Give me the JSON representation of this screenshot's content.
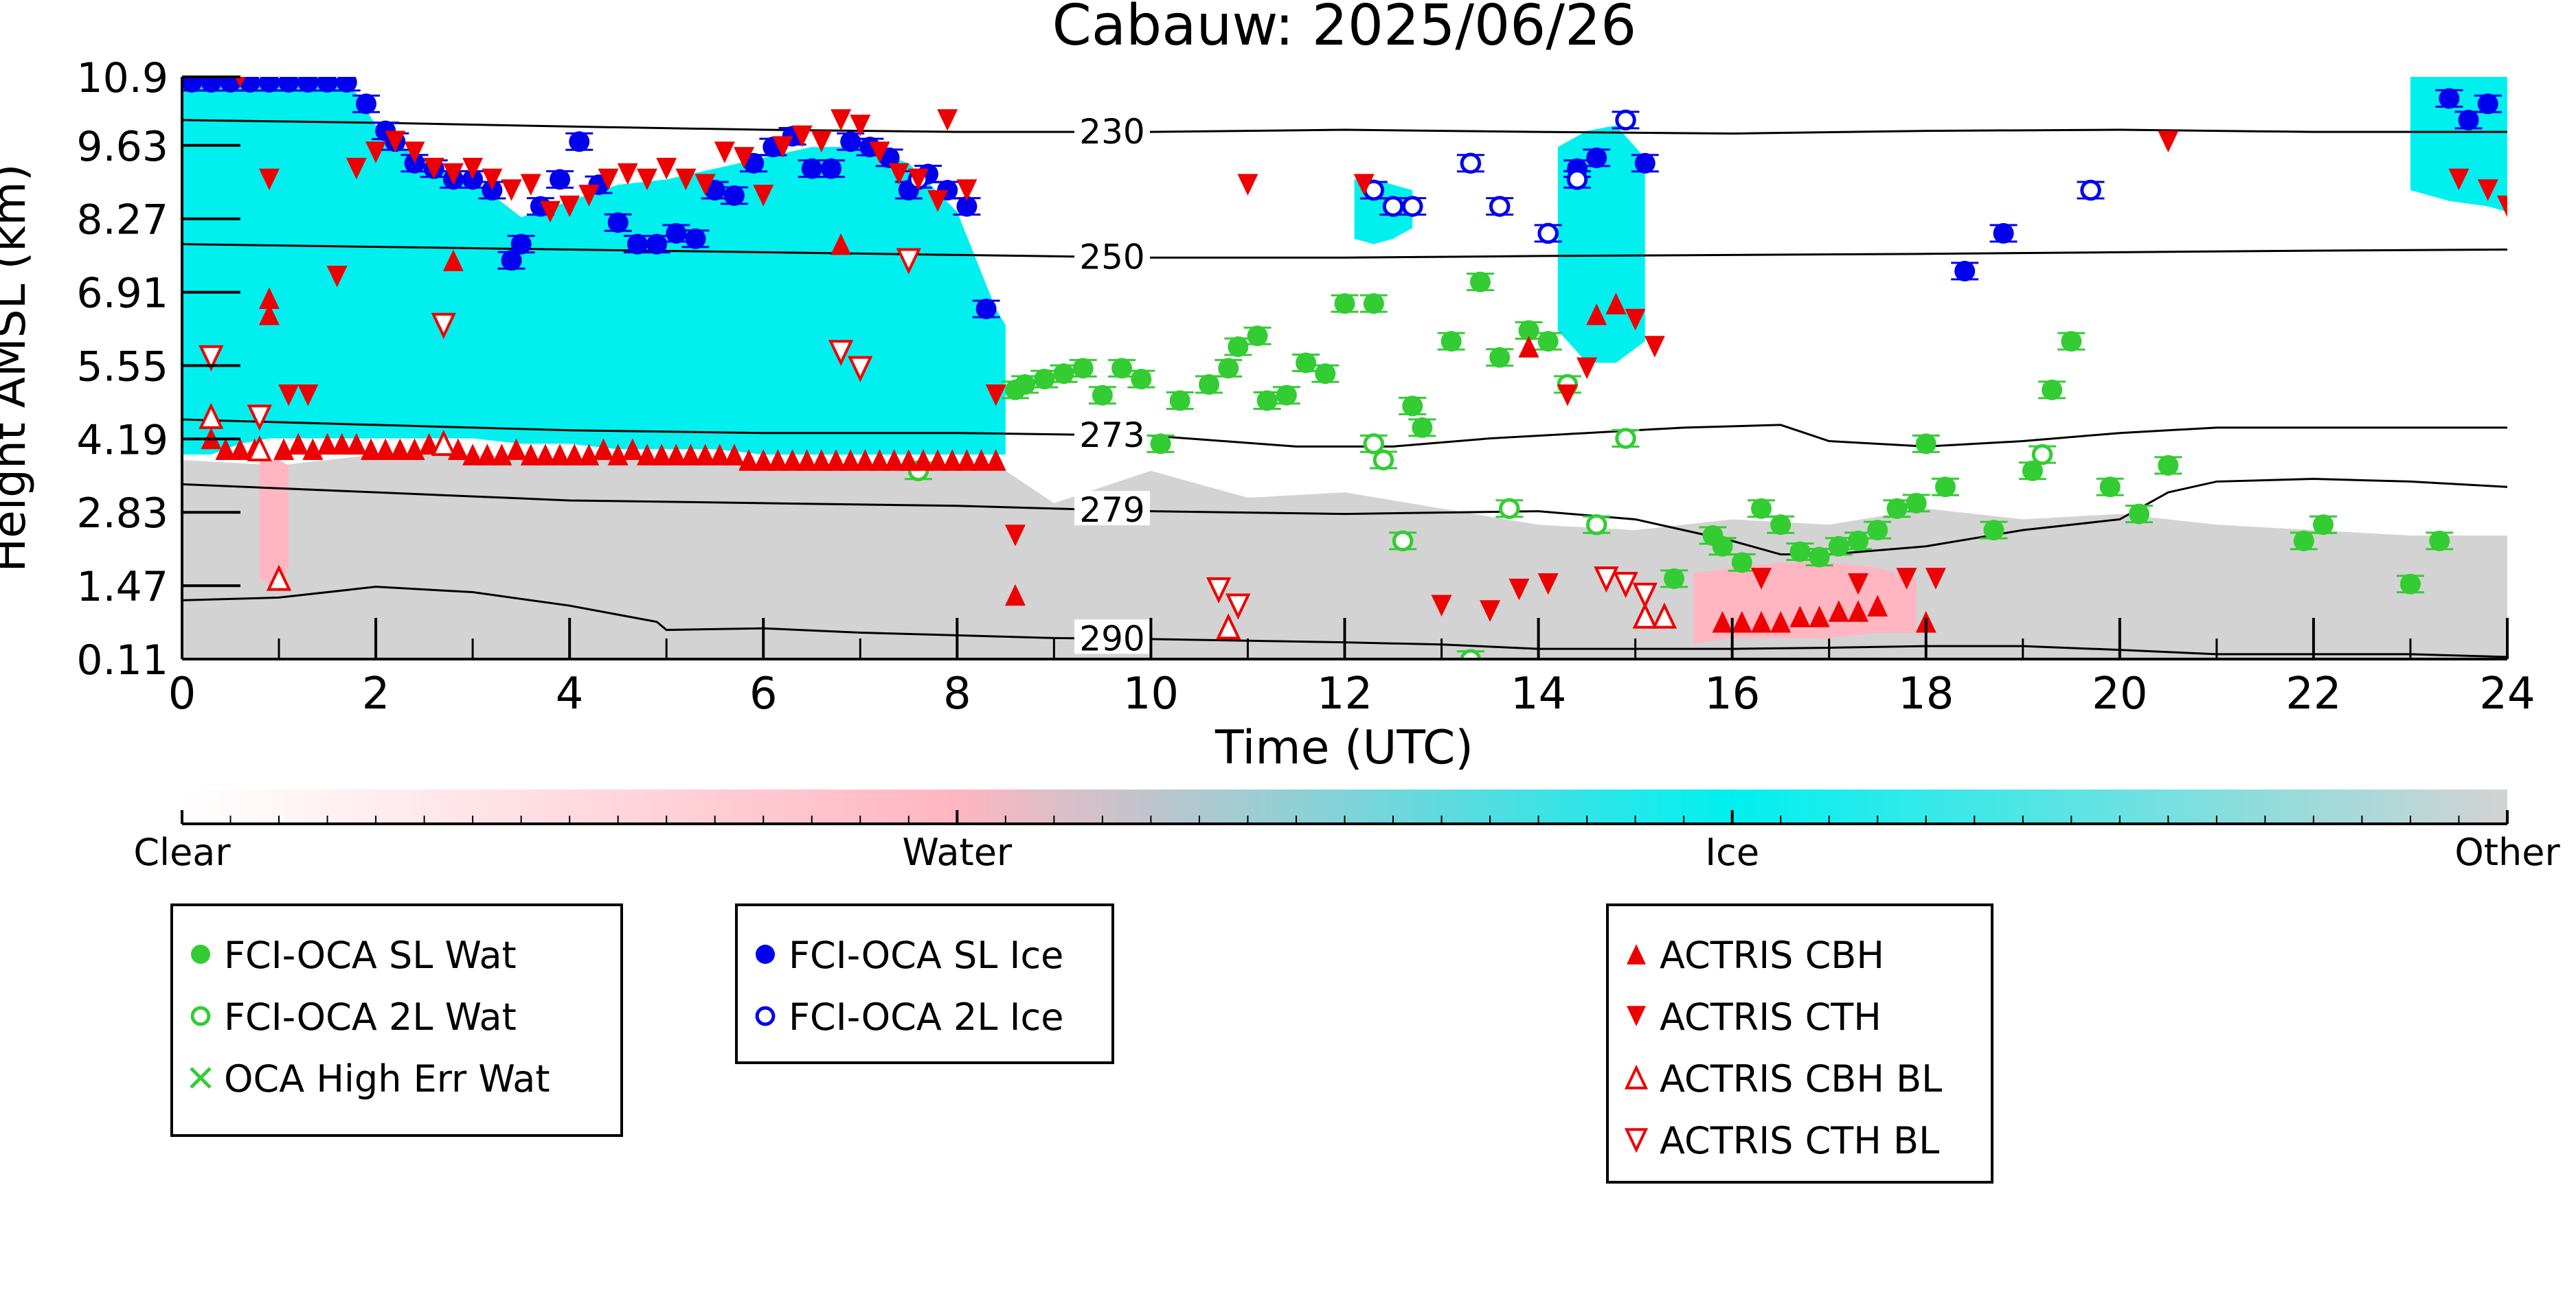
{
  "chart_data": {
    "type": "scatter",
    "title": "Cabauw: 2025/06/26",
    "xlabel": "Time (UTC)",
    "ylabel": "Height AMSL (km)",
    "xlim": [
      0,
      24
    ],
    "ylim": [
      0.11,
      10.9
    ],
    "xticks": [
      0,
      2,
      4,
      6,
      8,
      10,
      12,
      14,
      16,
      18,
      20,
      22,
      24
    ],
    "yticks": [
      "0.11",
      "1.47",
      "2.83",
      "4.19",
      "5.55",
      "6.91",
      "8.27",
      "9.63",
      "10.9"
    ],
    "colorbar": {
      "labels": [
        "Clear",
        "Water",
        "Ice",
        "Other"
      ],
      "colors": [
        "#ffffff",
        "#ffb6c1",
        "#00f0f0",
        "#d3d3d3"
      ]
    },
    "background_regions": [
      {
        "class": "Ice",
        "color": "#00f0f0",
        "x": [
          0.0,
          0.3,
          0.6,
          0.9,
          1.2,
          1.5,
          1.8,
          2.0,
          2.5,
          3.0,
          3.5,
          4.0,
          4.5,
          5.0,
          5.5,
          6.0,
          6.5,
          7.0,
          7.5,
          8.0,
          8.4,
          8.5
        ],
        "top": [
          10.9,
          10.9,
          10.8,
          10.8,
          10.9,
          10.9,
          10.6,
          10.0,
          9.3,
          9.0,
          8.3,
          8.6,
          8.9,
          9.0,
          9.2,
          9.4,
          9.6,
          9.6,
          9.3,
          8.4,
          6.6,
          6.3
        ],
        "bottom": [
          3.9,
          3.9,
          4.1,
          4.2,
          4.2,
          4.2,
          4.2,
          4.2,
          4.2,
          4.2,
          4.1,
          4.1,
          4.0,
          4.0,
          4.0,
          3.9,
          3.9,
          3.9,
          3.9,
          3.9,
          3.9,
          3.9
        ]
      },
      {
        "class": "Ice",
        "color": "#00f0f0",
        "x": [
          12.1,
          12.3,
          12.5,
          12.7
        ],
        "top": [
          9.0,
          9.0,
          8.9,
          8.8
        ],
        "bottom": [
          7.9,
          7.8,
          7.9,
          8.1
        ]
      },
      {
        "class": "Ice",
        "color": "#00f0f0",
        "x": [
          14.2,
          14.5,
          14.8,
          15.1
        ],
        "top": [
          9.6,
          9.9,
          10.0,
          9.4
        ],
        "bottom": [
          6.2,
          5.6,
          5.6,
          6.0
        ]
      },
      {
        "class": "Ice",
        "color": "#00f0f0",
        "x": [
          23.0,
          23.4,
          23.8,
          24.0
        ],
        "top": [
          10.9,
          10.9,
          10.9,
          10.9
        ],
        "bottom": [
          8.8,
          8.6,
          8.5,
          8.4
        ]
      },
      {
        "class": "Other",
        "color": "#d3d3d3",
        "x": [
          0.0,
          1.0,
          2.0,
          3.0,
          4.0,
          5.0,
          6.0,
          7.0,
          8.0,
          8.5,
          9.0,
          10.0,
          11.0,
          12.0,
          13.0,
          14.0,
          15.0,
          16.0,
          17.0,
          18.0,
          19.0,
          20.0,
          21.0,
          22.0,
          23.0,
          24.0
        ],
        "top": [
          3.8,
          3.7,
          3.9,
          3.9,
          3.8,
          3.8,
          3.7,
          3.6,
          3.6,
          3.6,
          3.0,
          3.6,
          3.1,
          3.2,
          2.9,
          2.6,
          2.5,
          2.7,
          2.6,
          2.9,
          2.7,
          2.8,
          2.6,
          2.5,
          2.4,
          2.4
        ],
        "bottom": [
          0.11,
          0.11,
          0.11,
          0.11,
          0.11,
          0.11,
          0.11,
          0.11,
          0.11,
          0.11,
          0.11,
          0.11,
          0.11,
          0.11,
          0.11,
          0.11,
          0.11,
          0.11,
          0.11,
          0.11,
          0.11,
          0.11,
          0.11,
          0.11,
          0.11,
          0.11
        ]
      },
      {
        "class": "Water",
        "color": "#ffb6c1",
        "x": [
          0.8,
          1.0,
          1.1
        ],
        "top": [
          3.8,
          3.8,
          3.7
        ],
        "bottom": [
          1.6,
          1.4,
          1.8
        ]
      },
      {
        "class": "Water",
        "color": "#ffb6c1",
        "x": [
          15.6,
          16.0,
          16.5,
          17.0,
          17.5,
          17.9
        ],
        "top": [
          1.7,
          1.8,
          1.9,
          1.9,
          1.8,
          1.6
        ],
        "bottom": [
          0.4,
          0.5,
          0.5,
          0.5,
          0.6,
          0.6
        ]
      }
    ],
    "isotherms": [
      {
        "label": "230",
        "label_x": 9.6,
        "x": [
          0.0,
          2.0,
          4.0,
          6.0,
          8.0,
          10.0,
          12.0,
          14.0,
          16.0,
          18.0,
          20.0,
          22.0,
          24.0
        ],
        "y": [
          10.1,
          10.05,
          9.98,
          9.92,
          9.88,
          9.88,
          9.92,
          9.88,
          9.85,
          9.9,
          9.92,
          9.88,
          9.88
        ]
      },
      {
        "label": "250",
        "label_x": 9.6,
        "x": [
          0.0,
          2.0,
          4.0,
          6.0,
          8.0,
          10.0,
          12.0,
          14.0,
          16.0,
          18.0,
          20.0,
          22.0,
          24.0
        ],
        "y": [
          7.8,
          7.75,
          7.7,
          7.65,
          7.6,
          7.55,
          7.55,
          7.58,
          7.6,
          7.62,
          7.65,
          7.68,
          7.7
        ]
      },
      {
        "label": "273",
        "label_x": 9.6,
        "x": [
          0.0,
          2.0,
          4.0,
          6.0,
          8.0,
          10.0,
          11.5,
          12.5,
          13.5,
          14.5,
          15.5,
          16.5,
          17.0,
          18.0,
          19.0,
          20.0,
          21.0,
          22.0,
          23.0,
          24.0
        ],
        "y": [
          4.55,
          4.45,
          4.35,
          4.3,
          4.3,
          4.25,
          4.05,
          4.05,
          4.2,
          4.3,
          4.4,
          4.45,
          4.15,
          4.05,
          4.15,
          4.3,
          4.4,
          4.4,
          4.4,
          4.4
        ]
      },
      {
        "label": "279",
        "label_x": 9.6,
        "x": [
          0.0,
          2.0,
          4.0,
          6.0,
          8.0,
          10.0,
          12.0,
          14.0,
          15.0,
          16.0,
          16.5,
          17.0,
          18.0,
          19.0,
          20.0,
          20.5,
          21.0,
          22.0,
          23.0,
          24.0
        ],
        "y": [
          3.35,
          3.2,
          3.05,
          3.0,
          2.95,
          2.85,
          2.8,
          2.85,
          2.7,
          2.3,
          2.05,
          2.05,
          2.2,
          2.5,
          2.7,
          3.2,
          3.4,
          3.45,
          3.4,
          3.3
        ]
      },
      {
        "label": "290",
        "label_x": 9.6,
        "x": [
          0.0,
          1.0,
          2.0,
          3.0,
          4.0,
          4.9,
          5.0,
          6.0,
          7.0,
          8.0,
          9.0,
          10.0,
          11.0,
          12.0,
          13.0,
          14.0,
          15.0,
          16.0,
          17.0,
          18.0,
          19.0,
          20.0,
          21.0,
          22.0,
          23.0,
          24.0
        ],
        "y": [
          1.2,
          1.25,
          1.45,
          1.35,
          1.1,
          0.8,
          0.65,
          0.68,
          0.6,
          0.55,
          0.5,
          0.48,
          0.45,
          0.42,
          0.38,
          0.3,
          0.3,
          0.3,
          0.32,
          0.35,
          0.35,
          0.28,
          0.2,
          0.2,
          0.2,
          0.15
        ]
      }
    ],
    "series": [
      {
        "name": "FCI-OCA SL Wat",
        "marker": "circle-filled",
        "color": "#33cc33",
        "x": [
          8.6,
          8.7,
          8.9,
          9.1,
          9.3,
          9.5,
          9.7,
          9.9,
          10.1,
          10.3,
          10.6,
          10.8,
          10.9,
          11.1,
          11.2,
          11.4,
          11.6,
          11.8,
          12.0,
          12.3,
          12.7,
          12.8,
          13.1,
          13.4,
          13.6,
          13.9,
          14.1,
          15.4,
          15.8,
          15.9,
          16.1,
          16.3,
          16.5,
          16.7,
          16.9,
          17.1,
          17.3,
          17.5,
          17.7,
          17.9,
          18.0,
          18.2,
          18.7,
          19.1,
          19.3,
          19.5,
          19.9,
          20.2,
          20.5,
          21.9,
          22.1,
          23.0,
          23.3
        ],
        "y": [
          5.1,
          5.2,
          5.3,
          5.4,
          5.5,
          5.0,
          5.5,
          5.3,
          4.1,
          4.9,
          5.2,
          5.5,
          5.9,
          6.1,
          4.9,
          5.0,
          5.6,
          5.4,
          6.7,
          6.7,
          4.8,
          4.4,
          6.0,
          7.1,
          5.7,
          6.2,
          6.0,
          1.6,
          2.4,
          2.2,
          1.9,
          2.9,
          2.6,
          2.1,
          2.0,
          2.2,
          2.3,
          2.5,
          2.9,
          3.0,
          4.1,
          3.3,
          2.5,
          3.6,
          5.1,
          6.0,
          3.3,
          2.8,
          3.7,
          2.3,
          2.6,
          1.5,
          2.3
        ]
      },
      {
        "name": "FCI-OCA 2L Wat",
        "marker": "circle-open",
        "color": "#33cc33",
        "x": [
          7.6,
          12.3,
          12.4,
          12.6,
          13.3,
          13.7,
          14.3,
          14.6,
          14.9,
          19.2
        ],
        "y": [
          3.6,
          4.1,
          3.8,
          2.3,
          0.1,
          2.9,
          5.2,
          2.6,
          4.2,
          3.9
        ]
      },
      {
        "name": "OCA High Err Wat",
        "marker": "x",
        "color": "#33cc33",
        "x": [],
        "y": []
      },
      {
        "name": "FCI-OCA SL Ice",
        "marker": "circle-filled",
        "color": "#0000ee",
        "x": [
          0.1,
          0.3,
          0.5,
          0.7,
          0.9,
          1.1,
          1.3,
          1.5,
          1.7,
          1.9,
          2.1,
          2.2,
          2.4,
          2.6,
          2.8,
          3.0,
          3.2,
          3.4,
          3.5,
          3.7,
          3.9,
          4.1,
          4.3,
          4.5,
          4.7,
          4.9,
          5.1,
          5.3,
          5.5,
          5.7,
          5.9,
          6.1,
          6.3,
          6.5,
          6.7,
          6.9,
          7.1,
          7.3,
          7.5,
          7.7,
          7.9,
          8.1,
          8.3,
          14.4,
          14.6,
          15.1,
          18.4,
          18.8,
          23.4,
          23.6,
          23.8
        ],
        "y": [
          10.8,
          10.8,
          10.8,
          10.8,
          10.8,
          10.8,
          10.8,
          10.8,
          10.8,
          10.4,
          9.9,
          9.7,
          9.3,
          9.2,
          9.0,
          9.0,
          8.8,
          7.5,
          7.8,
          8.5,
          9.0,
          9.7,
          8.9,
          8.2,
          7.8,
          7.8,
          8.0,
          7.9,
          8.8,
          8.7,
          9.3,
          9.6,
          9.8,
          9.2,
          9.2,
          9.7,
          9.6,
          9.4,
          8.8,
          9.1,
          8.8,
          8.5,
          6.6,
          9.2,
          9.4,
          9.3,
          7.3,
          8.0,
          10.5,
          10.1,
          10.4
        ]
      },
      {
        "name": "FCI-OCA 2L Ice",
        "marker": "circle-open",
        "color": "#0000ee",
        "x": [
          7.6,
          12.3,
          12.5,
          12.7,
          13.3,
          13.6,
          14.1,
          14.4,
          14.9,
          19.7
        ],
        "y": [
          9.0,
          8.8,
          8.5,
          8.5,
          9.3,
          8.5,
          8.0,
          9.0,
          10.1,
          8.8
        ]
      },
      {
        "name": "ACTRIS CBH",
        "marker": "triangle-up-filled",
        "color": "#ee0000",
        "x": [
          0.3,
          0.45,
          0.6,
          0.75,
          0.9,
          1.05,
          1.2,
          1.35,
          1.5,
          1.65,
          1.8,
          1.95,
          2.1,
          2.25,
          2.4,
          2.55,
          2.7,
          2.85,
          3.0,
          3.15,
          3.3,
          3.45,
          3.6,
          3.75,
          3.9,
          4.05,
          4.2,
          4.35,
          4.5,
          4.65,
          4.8,
          4.95,
          5.1,
          5.25,
          5.4,
          5.55,
          5.7,
          5.85,
          6.0,
          6.15,
          6.3,
          6.45,
          6.6,
          6.75,
          6.9,
          7.05,
          7.2,
          7.35,
          7.5,
          7.65,
          7.8,
          7.95,
          8.1,
          8.25,
          8.4,
          0.9,
          1.0,
          2.8,
          6.8,
          8.6,
          13.9,
          14.6,
          14.8,
          15.9,
          16.1,
          16.3,
          16.5,
          16.7,
          16.9,
          17.1,
          17.3,
          17.5,
          18.0
        ],
        "y": [
          4.2,
          4.0,
          4.0,
          4.0,
          6.8,
          4.0,
          4.1,
          4.0,
          4.1,
          4.1,
          4.1,
          4.0,
          4.0,
          4.0,
          4.0,
          4.1,
          4.1,
          4.0,
          3.9,
          3.9,
          3.9,
          4.0,
          3.9,
          3.9,
          3.9,
          3.9,
          3.9,
          4.0,
          3.9,
          4.0,
          3.9,
          3.9,
          3.9,
          3.9,
          3.9,
          3.9,
          3.9,
          3.8,
          3.8,
          3.8,
          3.8,
          3.8,
          3.8,
          3.8,
          3.8,
          3.8,
          3.8,
          3.8,
          3.8,
          3.8,
          3.8,
          3.8,
          3.8,
          3.8,
          3.8,
          6.5,
          1.6,
          7.5,
          7.8,
          1.3,
          5.9,
          6.5,
          6.7,
          0.8,
          0.8,
          0.8,
          0.8,
          0.9,
          0.9,
          1.0,
          1.0,
          1.1,
          0.8
        ]
      },
      {
        "name": "ACTRIS CTH",
        "marker": "triangle-down-filled",
        "color": "#ee0000",
        "x": [
          0.6,
          0.9,
          1.1,
          1.3,
          1.6,
          1.8,
          2.0,
          2.2,
          2.4,
          2.6,
          2.8,
          3.0,
          3.2,
          3.4,
          3.6,
          3.8,
          4.0,
          4.2,
          4.4,
          4.6,
          4.8,
          5.0,
          5.2,
          5.4,
          5.6,
          5.8,
          6.0,
          6.2,
          6.4,
          6.6,
          6.8,
          7.0,
          7.2,
          7.4,
          7.6,
          7.8,
          7.9,
          8.1,
          8.4,
          8.6,
          11.0,
          12.2,
          13.0,
          13.5,
          13.8,
          14.1,
          14.3,
          14.5,
          15.0,
          15.2,
          16.3,
          17.3,
          17.8,
          18.1,
          20.5,
          23.5,
          23.8,
          24.0
        ],
        "y": [
          10.9,
          9.0,
          5.0,
          5.0,
          7.2,
          9.2,
          9.5,
          9.7,
          9.5,
          9.2,
          9.1,
          9.2,
          9.0,
          8.8,
          8.9,
          8.4,
          8.5,
          8.7,
          9.0,
          9.1,
          9.0,
          9.2,
          9.0,
          8.9,
          9.5,
          9.4,
          8.7,
          9.6,
          9.8,
          9.7,
          10.1,
          10.0,
          9.5,
          9.1,
          9.0,
          8.6,
          10.1,
          8.8,
          5.0,
          2.4,
          8.9,
          8.9,
          1.1,
          1.0,
          1.4,
          1.5,
          5.0,
          5.5,
          6.4,
          5.9,
          1.6,
          1.5,
          1.6,
          1.6,
          9.7,
          9.0,
          8.8,
          8.5
        ]
      },
      {
        "name": "ACTRIS CBH BL",
        "marker": "triangle-up-open",
        "color": "#ee0000",
        "x": [
          0.3,
          0.8,
          1.0,
          2.7,
          10.8,
          15.1,
          15.3
        ],
        "y": [
          4.6,
          4.0,
          1.6,
          4.1,
          0.7,
          0.9,
          0.9
        ]
      },
      {
        "name": "ACTRIS CTH BL",
        "marker": "triangle-down-open",
        "color": "#ee0000",
        "x": [
          0.3,
          0.8,
          2.7,
          6.8,
          7.0,
          7.5,
          10.7,
          10.9,
          14.7,
          14.9,
          15.1
        ],
        "y": [
          5.7,
          4.6,
          6.3,
          5.8,
          5.5,
          7.5,
          1.4,
          1.1,
          1.6,
          1.5,
          1.3
        ]
      }
    ]
  },
  "legends": [
    {
      "items": [
        {
          "label": "FCI-OCA SL Wat",
          "marker": "circle-filled",
          "color": "#33cc33"
        },
        {
          "label": "FCI-OCA 2L Wat",
          "marker": "circle-open",
          "color": "#33cc33"
        },
        {
          "label": "OCA High Err Wat",
          "marker": "x",
          "color": "#33cc33"
        }
      ]
    },
    {
      "items": [
        {
          "label": "FCI-OCA SL Ice",
          "marker": "circle-filled",
          "color": "#0000ee"
        },
        {
          "label": "FCI-OCA 2L Ice",
          "marker": "circle-open",
          "color": "#0000ee"
        }
      ]
    },
    {
      "items": [
        {
          "label": "ACTRIS CBH",
          "marker": "triangle-up-filled",
          "color": "#ee0000"
        },
        {
          "label": "ACTRIS CTH",
          "marker": "triangle-down-filled",
          "color": "#ee0000"
        },
        {
          "label": "ACTRIS CBH BL",
          "marker": "triangle-up-open",
          "color": "#ee0000"
        },
        {
          "label": "ACTRIS CTH BL",
          "marker": "triangle-down-open",
          "color": "#ee0000"
        }
      ]
    }
  ]
}
